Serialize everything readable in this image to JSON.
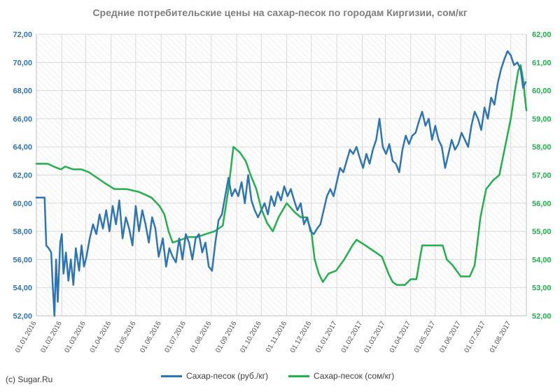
{
  "chart_data": {
    "type": "line",
    "title": "Средние потребительские цены на сахар-песок по городам Киргизии, сом/кг",
    "credit": "(c) Sugar.Ru",
    "y_left": {
      "min": 52,
      "max": 72,
      "ticks": [
        "52,00",
        "54,00",
        "56,00",
        "58,00",
        "60,00",
        "62,00",
        "64,00",
        "66,00",
        "68,00",
        "70,00",
        "72,00"
      ]
    },
    "y_right": {
      "min": 52,
      "max": 62,
      "ticks": [
        "52,00",
        "53,00",
        "54,00",
        "55,00",
        "56,00",
        "57,00",
        "58,00",
        "59,00",
        "60,00",
        "61,00",
        "62,00"
      ]
    },
    "x_ticks": [
      "01.01.2016",
      "01.02.2016",
      "01.03.2016",
      "01.04.2016",
      "01.05.2016",
      "01.06.2016",
      "01.07.2016",
      "01.08.2016",
      "01.09.2016",
      "01.10.2016",
      "01.11.2016",
      "01.12.2016",
      "01.01.2017",
      "01.02.2017",
      "01.03.2017",
      "01.04.2017",
      "01.05.2017",
      "01.06.2017",
      "01.07.2017",
      "01.08.2017"
    ],
    "x_range": [
      "01.01.2016",
      "20.08.2017"
    ],
    "grid": true,
    "legend_position": "bottom",
    "series": [
      {
        "name": "Сахар-песок (руб./кг)",
        "axis": "left",
        "color": "#2e75b6",
        "points": [
          [
            "01.01.2016",
            60.4
          ],
          [
            "07.01.2016",
            60.4
          ],
          [
            "11.01.2016",
            60.4
          ],
          [
            "13.01.2016",
            57.0
          ],
          [
            "16.01.2016",
            56.8
          ],
          [
            "19.01.2016",
            56.5
          ],
          [
            "21.01.2016",
            54.0
          ],
          [
            "23.01.2016",
            52.0
          ],
          [
            "25.01.2016",
            56.0
          ],
          [
            "27.01.2016",
            53.0
          ],
          [
            "30.01.2016",
            57.2
          ],
          [
            "01.02.2016",
            57.8
          ],
          [
            "03.02.2016",
            55.0
          ],
          [
            "06.02.2016",
            56.5
          ],
          [
            "09.02.2016",
            54.5
          ],
          [
            "12.02.2016",
            56.0
          ],
          [
            "15.02.2016",
            54.2
          ],
          [
            "18.02.2016",
            56.8
          ],
          [
            "22.02.2016",
            55.2
          ],
          [
            "25.02.2016",
            57.0
          ],
          [
            "28.02.2016",
            55.5
          ],
          [
            "02.03.2016",
            56.2
          ],
          [
            "06.03.2016",
            57.5
          ],
          [
            "10.03.2016",
            58.5
          ],
          [
            "14.03.2016",
            57.8
          ],
          [
            "18.03.2016",
            59.2
          ],
          [
            "22.03.2016",
            58.2
          ],
          [
            "26.03.2016",
            59.5
          ],
          [
            "30.03.2016",
            58.0
          ],
          [
            "03.04.2016",
            59.8
          ],
          [
            "07.04.2016",
            58.5
          ],
          [
            "11.04.2016",
            60.2
          ],
          [
            "15.04.2016",
            57.5
          ],
          [
            "19.04.2016",
            59.0
          ],
          [
            "23.04.2016",
            58.2
          ],
          [
            "27.04.2016",
            57.0
          ],
          [
            "01.05.2016",
            59.8
          ],
          [
            "05.05.2016",
            58.0
          ],
          [
            "09.05.2016",
            59.5
          ],
          [
            "13.05.2016",
            58.5
          ],
          [
            "17.05.2016",
            57.2
          ],
          [
            "21.05.2016",
            59.0
          ],
          [
            "25.05.2016",
            58.2
          ],
          [
            "29.05.2016",
            56.2
          ],
          [
            "03.06.2016",
            57.5
          ],
          [
            "07.06.2016",
            55.5
          ],
          [
            "11.06.2016",
            56.8
          ],
          [
            "15.06.2016",
            56.2
          ],
          [
            "19.06.2016",
            55.8
          ],
          [
            "23.06.2016",
            57.5
          ],
          [
            "27.06.2016",
            56.0
          ],
          [
            "01.07.2016",
            57.8
          ],
          [
            "05.07.2016",
            57.2
          ],
          [
            "09.07.2016",
            56.0
          ],
          [
            "13.07.2016",
            57.5
          ],
          [
            "17.07.2016",
            57.8
          ],
          [
            "21.07.2016",
            56.5
          ],
          [
            "25.07.2016",
            57.2
          ],
          [
            "29.07.2016",
            55.5
          ],
          [
            "02.08.2016",
            55.2
          ],
          [
            "06.08.2016",
            57.2
          ],
          [
            "10.08.2016",
            58.8
          ],
          [
            "14.08.2016",
            59.2
          ],
          [
            "18.08.2016",
            60.5
          ],
          [
            "22.08.2016",
            61.8
          ],
          [
            "26.08.2016",
            60.5
          ],
          [
            "30.08.2016",
            61.0
          ],
          [
            "03.09.2016",
            60.5
          ],
          [
            "07.09.2016",
            61.5
          ],
          [
            "11.09.2016",
            60.0
          ],
          [
            "15.09.2016",
            62.0
          ],
          [
            "19.09.2016",
            60.2
          ],
          [
            "23.09.2016",
            59.5
          ],
          [
            "27.09.2016",
            59.0
          ],
          [
            "01.10.2016",
            59.5
          ],
          [
            "05.10.2016",
            60.0
          ],
          [
            "09.10.2016",
            59.2
          ],
          [
            "13.10.2016",
            60.5
          ],
          [
            "17.10.2016",
            59.8
          ],
          [
            "21.10.2016",
            60.8
          ],
          [
            "25.10.2016",
            60.2
          ],
          [
            "29.10.2016",
            61.2
          ],
          [
            "02.11.2016",
            60.5
          ],
          [
            "06.11.2016",
            61.0
          ],
          [
            "10.11.2016",
            60.2
          ],
          [
            "14.11.2016",
            59.5
          ],
          [
            "18.11.2016",
            60.0
          ],
          [
            "22.11.2016",
            58.5
          ],
          [
            "26.11.2016",
            59.0
          ],
          [
            "30.11.2016",
            58.0
          ],
          [
            "04.12.2016",
            57.8
          ],
          [
            "08.12.2016",
            58.2
          ],
          [
            "12.12.2016",
            58.5
          ],
          [
            "16.12.2016",
            59.5
          ],
          [
            "20.12.2016",
            60.5
          ],
          [
            "24.12.2016",
            61.0
          ],
          [
            "28.12.2016",
            60.5
          ],
          [
            "01.01.2017",
            61.5
          ],
          [
            "05.01.2017",
            62.5
          ],
          [
            "09.01.2017",
            62.2
          ],
          [
            "13.01.2017",
            63.0
          ],
          [
            "17.01.2017",
            63.8
          ],
          [
            "21.01.2017",
            63.5
          ],
          [
            "25.01.2017",
            64.0
          ],
          [
            "29.01.2017",
            63.2
          ],
          [
            "02.02.2017",
            62.5
          ],
          [
            "06.02.2017",
            63.5
          ],
          [
            "10.02.2017",
            62.8
          ],
          [
            "14.02.2017",
            63.8
          ],
          [
            "18.02.2017",
            64.5
          ],
          [
            "22.02.2017",
            66.0
          ],
          [
            "26.02.2017",
            64.0
          ],
          [
            "02.03.2017",
            63.5
          ],
          [
            "06.03.2017",
            64.2
          ],
          [
            "10.03.2017",
            63.0
          ],
          [
            "14.03.2017",
            62.8
          ],
          [
            "18.03.2017",
            62.2
          ],
          [
            "22.03.2017",
            63.8
          ],
          [
            "26.03.2017",
            64.8
          ],
          [
            "30.03.2017",
            64.2
          ],
          [
            "03.04.2017",
            64.8
          ],
          [
            "07.04.2017",
            65.0
          ],
          [
            "11.04.2017",
            65.8
          ],
          [
            "15.04.2017",
            66.5
          ],
          [
            "19.04.2017",
            65.5
          ],
          [
            "23.04.2017",
            66.0
          ],
          [
            "27.04.2017",
            64.5
          ],
          [
            "01.05.2017",
            65.5
          ],
          [
            "05.05.2017",
            64.5
          ],
          [
            "09.05.2017",
            64.0
          ],
          [
            "13.05.2017",
            62.5
          ],
          [
            "17.05.2017",
            63.5
          ],
          [
            "21.05.2017",
            64.5
          ],
          [
            "25.05.2017",
            63.8
          ],
          [
            "29.05.2017",
            64.2
          ],
          [
            "02.06.2017",
            65.0
          ],
          [
            "06.06.2017",
            64.5
          ],
          [
            "10.06.2017",
            64.0
          ],
          [
            "14.06.2017",
            65.5
          ],
          [
            "18.06.2017",
            66.5
          ],
          [
            "22.06.2017",
            66.0
          ],
          [
            "26.06.2017",
            65.2
          ],
          [
            "30.06.2017",
            66.8
          ],
          [
            "04.07.2017",
            66.0
          ],
          [
            "08.07.2017",
            67.5
          ],
          [
            "12.07.2017",
            67.0
          ],
          [
            "16.07.2017",
            68.5
          ],
          [
            "20.07.2017",
            69.5
          ],
          [
            "24.07.2017",
            70.2
          ],
          [
            "28.07.2017",
            70.8
          ],
          [
            "01.08.2017",
            70.5
          ],
          [
            "05.08.2017",
            69.8
          ],
          [
            "09.08.2017",
            70.0
          ],
          [
            "13.08.2017",
            69.5
          ],
          [
            "16.08.2017",
            68.2
          ],
          [
            "19.08.2017",
            68.6
          ]
        ]
      },
      {
        "name": "Сахар-песок (сом/кг)",
        "axis": "right",
        "color": "#23b14d",
        "points": [
          [
            "01.01.2016",
            57.4
          ],
          [
            "15.01.2016",
            57.4
          ],
          [
            "22.01.2016",
            57.3
          ],
          [
            "31.01.2016",
            57.2
          ],
          [
            "05.02.2016",
            57.3
          ],
          [
            "15.02.2016",
            57.2
          ],
          [
            "25.02.2016",
            57.2
          ],
          [
            "05.03.2016",
            57.1
          ],
          [
            "15.03.2016",
            56.9
          ],
          [
            "25.03.2016",
            56.7
          ],
          [
            "05.04.2016",
            56.5
          ],
          [
            "20.04.2016",
            56.5
          ],
          [
            "05.05.2016",
            56.4
          ],
          [
            "20.05.2016",
            56.2
          ],
          [
            "30.05.2016",
            55.9
          ],
          [
            "05.06.2016",
            55.6
          ],
          [
            "10.06.2016",
            55.0
          ],
          [
            "15.06.2016",
            54.6
          ],
          [
            "25.06.2016",
            54.7
          ],
          [
            "05.07.2016",
            54.8
          ],
          [
            "15.07.2016",
            54.8
          ],
          [
            "25.07.2016",
            54.9
          ],
          [
            "05.08.2016",
            55.0
          ],
          [
            "15.08.2016",
            55.2
          ],
          [
            "22.08.2016",
            56.5
          ],
          [
            "28.08.2016",
            58.0
          ],
          [
            "05.09.2016",
            57.8
          ],
          [
            "12.09.2016",
            57.5
          ],
          [
            "18.09.2016",
            57.0
          ],
          [
            "25.09.2016",
            56.5
          ],
          [
            "01.10.2016",
            55.8
          ],
          [
            "08.10.2016",
            55.3
          ],
          [
            "15.10.2016",
            55.0
          ],
          [
            "22.10.2016",
            55.5
          ],
          [
            "01.11.2016",
            56.0
          ],
          [
            "10.11.2016",
            55.7
          ],
          [
            "18.11.2016",
            55.5
          ],
          [
            "25.11.2016",
            55.5
          ],
          [
            "01.12.2016",
            55.0
          ],
          [
            "05.12.2016",
            54.0
          ],
          [
            "10.12.2016",
            53.5
          ],
          [
            "15.12.2016",
            53.2
          ],
          [
            "22.12.2016",
            53.5
          ],
          [
            "31.12.2016",
            53.6
          ],
          [
            "10.01.2017",
            54.0
          ],
          [
            "20.01.2017",
            54.5
          ],
          [
            "25.01.2017",
            54.7
          ],
          [
            "05.02.2017",
            54.5
          ],
          [
            "15.02.2017",
            54.3
          ],
          [
            "25.02.2017",
            54.1
          ],
          [
            "05.03.2017",
            53.5
          ],
          [
            "10.03.2017",
            53.2
          ],
          [
            "15.03.2017",
            53.1
          ],
          [
            "25.03.2017",
            53.1
          ],
          [
            "01.04.2017",
            53.3
          ],
          [
            "08.04.2017",
            53.3
          ],
          [
            "12.04.2017",
            54.0
          ],
          [
            "15.04.2017",
            54.5
          ],
          [
            "30.04.2017",
            54.5
          ],
          [
            "10.05.2017",
            54.5
          ],
          [
            "15.05.2017",
            54.0
          ],
          [
            "22.05.2017",
            53.8
          ],
          [
            "01.06.2017",
            53.4
          ],
          [
            "12.06.2017",
            53.4
          ],
          [
            "18.06.2017",
            53.8
          ],
          [
            "25.06.2017",
            55.5
          ],
          [
            "02.07.2017",
            56.5
          ],
          [
            "10.07.2017",
            56.8
          ],
          [
            "18.07.2017",
            57.0
          ],
          [
            "25.07.2017",
            58.0
          ],
          [
            "01.08.2017",
            59.0
          ],
          [
            "06.08.2017",
            60.0
          ],
          [
            "10.08.2017",
            60.7
          ],
          [
            "13.08.2017",
            60.9
          ],
          [
            "16.08.2017",
            60.4
          ],
          [
            "18.08.2017",
            59.8
          ],
          [
            "20.08.2017",
            59.3
          ]
        ]
      }
    ]
  }
}
